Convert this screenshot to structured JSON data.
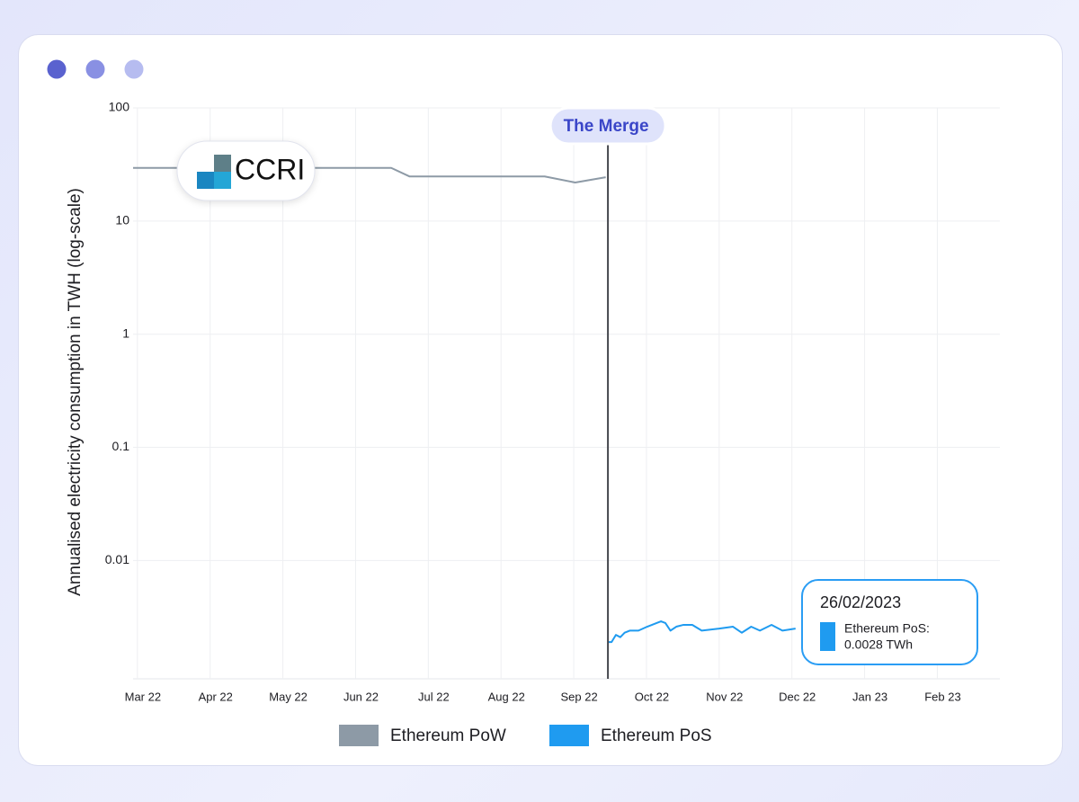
{
  "chart_data": {
    "type": "line",
    "y_label": "Annualised electricity consumption in TWH (log-scale)",
    "log_y": true,
    "grid": true,
    "ylim": [
      0.0009,
      100
    ],
    "yticks": [
      100,
      10,
      1,
      0.1,
      0.01
    ],
    "xlim": [
      -0.06,
      11.86
    ],
    "xticks": [
      {
        "value": 0,
        "label": "Mar 22"
      },
      {
        "value": 1,
        "label": "Apr 22"
      },
      {
        "value": 2,
        "label": "May 22"
      },
      {
        "value": 3,
        "label": "Jun 22"
      },
      {
        "value": 4,
        "label": "Jul 22"
      },
      {
        "value": 5,
        "label": "Aug 22"
      },
      {
        "value": 6,
        "label": "Sep 22"
      },
      {
        "value": 7,
        "label": "Oct 22"
      },
      {
        "value": 8,
        "label": "Nov 22"
      },
      {
        "value": 9,
        "label": "Dec 22"
      },
      {
        "value": 10,
        "label": "Jan 23"
      },
      {
        "value": 11,
        "label": "Feb 23"
      }
    ],
    "series": [
      {
        "name": "Ethereum PoW",
        "color": "#8d9aa6",
        "x": [
          -0.06,
          3.49,
          3.74,
          5.6,
          6.02,
          6.44
        ],
        "values": [
          29.5,
          29.5,
          24.8,
          24.8,
          21.9,
          24.4
        ]
      },
      {
        "name": "Ethereum PoS",
        "color": "#1f9bf0",
        "x": [
          6.47,
          6.52,
          6.58,
          6.64,
          6.7,
          6.77,
          6.89,
          7.01,
          7.14,
          7.2,
          7.26,
          7.33,
          7.41,
          7.51,
          7.63,
          7.76,
          8.0,
          8.19,
          8.31,
          8.44,
          8.56,
          8.72,
          8.87,
          9.05
        ],
        "values": [
          0.0019,
          0.0019,
          0.0022,
          0.0021,
          0.0023,
          0.0024,
          0.0024,
          0.0026,
          0.0028,
          0.0029,
          0.0028,
          0.0024,
          0.0026,
          0.0027,
          0.0027,
          0.0024,
          0.0025,
          0.0026,
          0.0023,
          0.0026,
          0.0024,
          0.0027,
          0.0024,
          0.0025
        ]
      }
    ],
    "annotation": {
      "text": "The Merge",
      "x": 6.47
    },
    "logo": "CCRI",
    "tooltip": {
      "title": "26/02/2023",
      "name": "Ethereum PoS:",
      "value_label": "0.0028 TWh"
    }
  }
}
